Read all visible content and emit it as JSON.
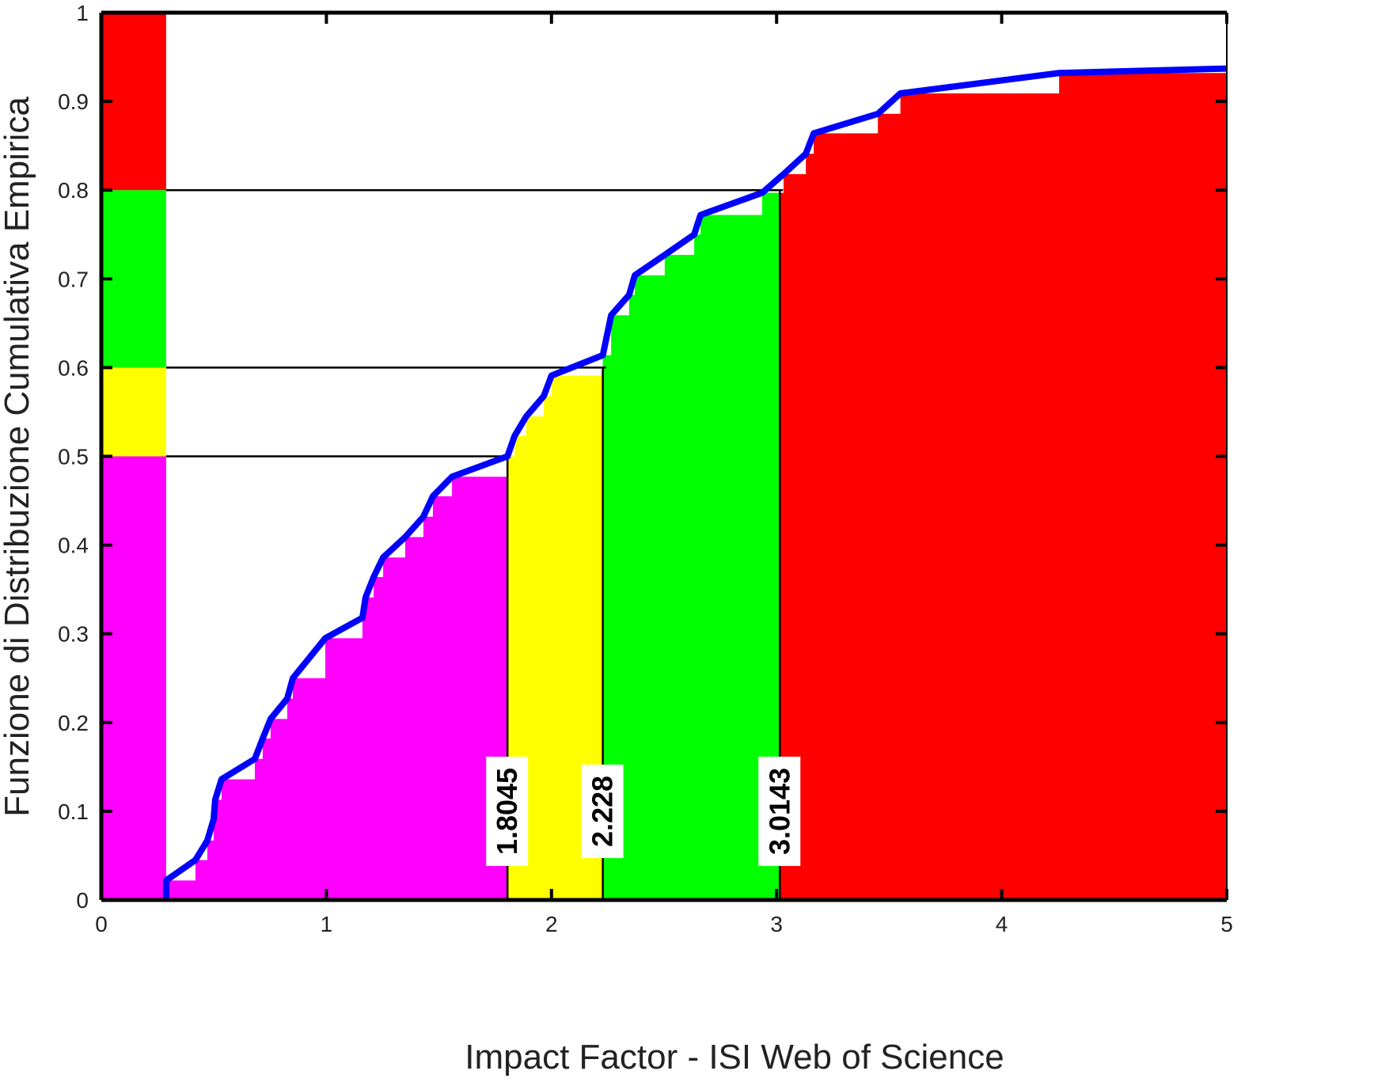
{
  "chart_data": {
    "type": "ecdf",
    "xlabel": "Impact Factor - ISI Web of Science",
    "ylabel": "Funzione di Distribuzione Cumulativa Empirica",
    "x": [
      0.288,
      0.288,
      0.418,
      0.471,
      0.499,
      0.506,
      0.534,
      0.682,
      0.717,
      0.752,
      0.826,
      0.851,
      0.995,
      1.16,
      1.174,
      1.21,
      1.252,
      1.35,
      1.431,
      1.473,
      1.558,
      1.8045,
      1.836,
      1.888,
      1.966,
      2.0,
      2.228,
      2.265,
      2.345,
      2.37,
      2.503,
      2.634,
      2.662,
      2.936,
      3.031,
      3.13,
      3.165,
      3.45,
      3.55,
      4.255,
      5.0
    ],
    "values": [
      0,
      0.022,
      0.045,
      0.067,
      0.091,
      0.113,
      0.136,
      0.159,
      0.182,
      0.204,
      0.227,
      0.25,
      0.295,
      0.318,
      0.341,
      0.364,
      0.386,
      0.409,
      0.432,
      0.455,
      0.477,
      0.5,
      0.523,
      0.545,
      0.568,
      0.591,
      0.614,
      0.659,
      0.682,
      0.704,
      0.727,
      0.75,
      0.772,
      0.797,
      0.818,
      0.841,
      0.864,
      0.886,
      0.909,
      0.932,
      0.937
    ],
    "color": "#0000ff",
    "thresholds": [
      {
        "value": 1.8045,
        "quantile": 0.5,
        "color": "#ff00ff"
      },
      {
        "value": 2.228,
        "quantile": 0.6,
        "color": "#ffff00"
      },
      {
        "value": 3.0143,
        "quantile": 0.8,
        "color": "#00ff00"
      }
    ],
    "last_color": "#ff0000",
    "xlim": [
      0,
      5
    ],
    "ylim": [
      0,
      1
    ],
    "xticks": [
      0,
      1,
      2,
      3,
      4,
      5
    ],
    "yticks": [
      0,
      0.1,
      0.2,
      0.3,
      0.4,
      0.5,
      0.6,
      0.7,
      0.8,
      0.9,
      1
    ]
  }
}
